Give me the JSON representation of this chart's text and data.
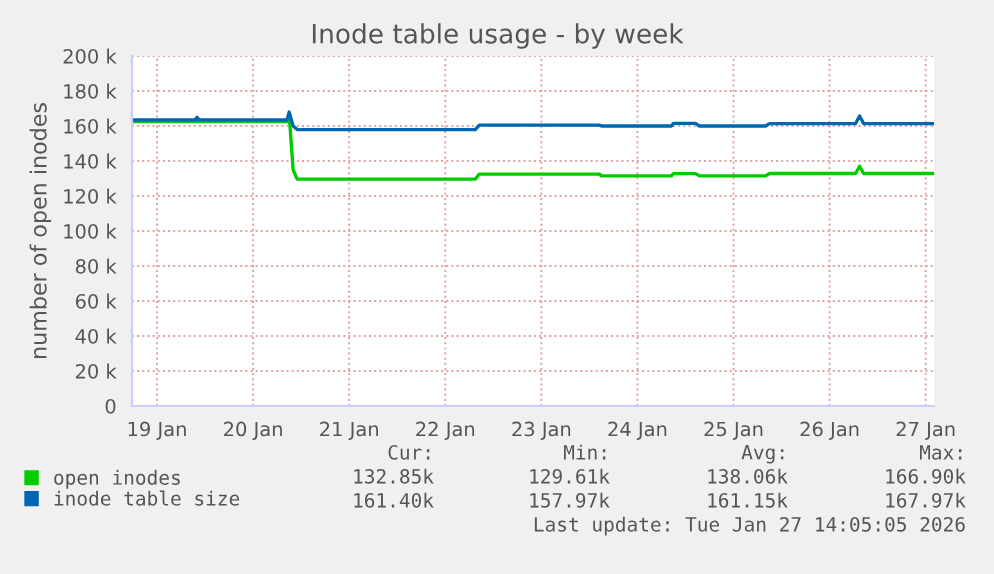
{
  "chart_data": {
    "type": "line",
    "title": "Inode table usage - by week",
    "ylabel": "number of open inodes",
    "x": [
      "2026-01-19T06:00",
      "2026-01-19T21:30",
      "2026-01-19T22:00",
      "2026-01-19T22:30",
      "2026-01-20T20:30",
      "2026-01-20T21:00",
      "2026-01-20T22:00",
      "2026-01-20T23:00",
      "2026-01-22T19:30",
      "2026-01-22T20:30",
      "2026-01-24T02:30",
      "2026-01-24T03:00",
      "2026-01-24T20:30",
      "2026-01-24T21:00",
      "2026-01-25T02:30",
      "2026-01-25T03:30",
      "2026-01-25T20:00",
      "2026-01-25T21:00",
      "2026-01-26T18:30",
      "2026-01-26T19:30",
      "2026-01-26T20:30",
      "2026-01-27T13:50"
    ],
    "series": [
      {
        "name": "open inodes",
        "color": "#00cc00",
        "values": [
          162500,
          162500,
          162500,
          162500,
          162500,
          166900,
          135000,
          129610,
          129610,
          132500,
          132500,
          131500,
          131500,
          132800,
          132800,
          131500,
          131500,
          132850,
          132850,
          137000,
          132850,
          132850
        ]
      },
      {
        "name": "inode table size",
        "color": "#0066b3",
        "values": [
          163500,
          163500,
          165000,
          163500,
          163500,
          167970,
          160000,
          157970,
          157970,
          160500,
          160500,
          160000,
          160000,
          161500,
          161500,
          160000,
          160000,
          161400,
          161400,
          165700,
          161400,
          161400
        ]
      }
    ],
    "xlim": [
      "2026-01-19T05:45",
      "2026-01-27T14:05"
    ],
    "xticks": [
      {
        "value": "2026-01-19T12:00",
        "label": "19 Jan"
      },
      {
        "value": "2026-01-20T12:00",
        "label": "20 Jan"
      },
      {
        "value": "2026-01-21T12:00",
        "label": "21 Jan"
      },
      {
        "value": "2026-01-22T12:00",
        "label": "22 Jan"
      },
      {
        "value": "2026-01-23T12:00",
        "label": "23 Jan"
      },
      {
        "value": "2026-01-24T12:00",
        "label": "24 Jan"
      },
      {
        "value": "2026-01-25T12:00",
        "label": "25 Jan"
      },
      {
        "value": "2026-01-26T12:00",
        "label": "26 Jan"
      },
      {
        "value": "2026-01-27T12:00",
        "label": "27 Jan"
      }
    ],
    "ylim": [
      0,
      200000
    ],
    "yticks": [
      0,
      {
        "value": 20000,
        "label": "20 k"
      },
      {
        "value": 40000,
        "label": "40 k"
      },
      {
        "value": 60000,
        "label": "60 k"
      },
      {
        "value": 80000,
        "label": "80 k"
      },
      {
        "value": 100000,
        "label": "100 k"
      },
      {
        "value": 120000,
        "label": "120 k"
      },
      {
        "value": 140000,
        "label": "140 k"
      },
      {
        "value": 160000,
        "label": "160 k"
      },
      {
        "value": 180000,
        "label": "180 k"
      },
      {
        "value": 200000,
        "label": "200 k"
      }
    ],
    "grid": true,
    "legend": "bottom left",
    "marker": "none",
    "line_style": "solid",
    "annotations": [
      "Cur:",
      "Min:",
      "Avg:",
      "Max:",
      "132.85k",
      "129.61k",
      "138.06k",
      "166.90k",
      "161.40k",
      "157.97k",
      "161.15k",
      "167.97k",
      "Last update: Tue Jan 27 14:05:05 2026"
    ]
  }
}
